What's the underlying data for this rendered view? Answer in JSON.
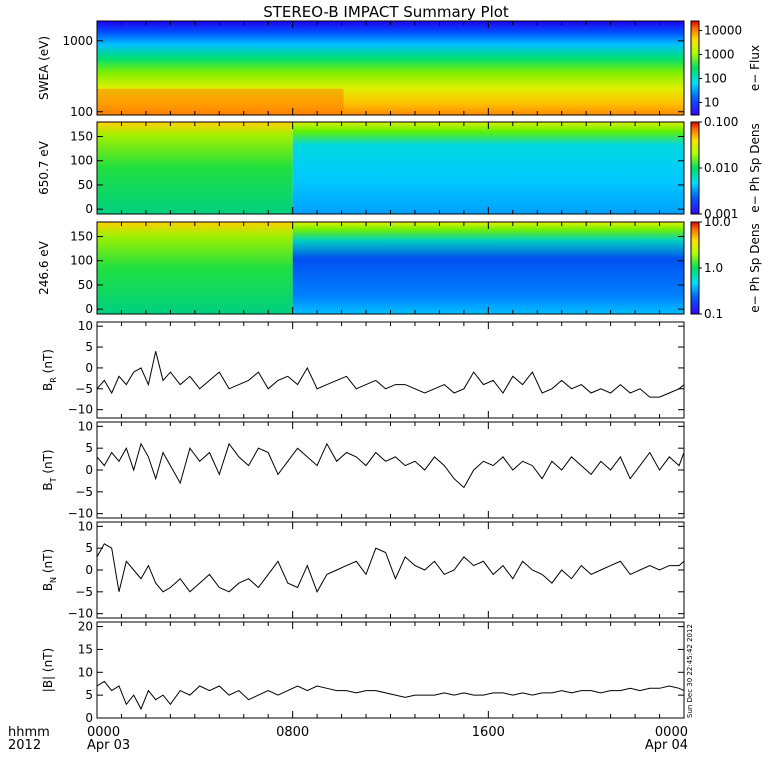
{
  "title": "STEREO-B IMPACT Summary Plot",
  "timestamp": "Sun Dec 30 22:45:42 2012",
  "time_axis": {
    "corner_label_top": "hhmm",
    "corner_label_bottom": "2012",
    "ticks": [
      {
        "hour": 0,
        "top": "0000",
        "bottom": "Apr 03"
      },
      {
        "hour": 8,
        "top": "0800",
        "bottom": ""
      },
      {
        "hour": 16,
        "top": "1600",
        "bottom": ""
      },
      {
        "hour": 24,
        "top": "0000",
        "bottom": "Apr 04"
      }
    ],
    "minor_tick_hours": 1
  },
  "chart_data": [
    {
      "id": "swea",
      "type": "heatmap",
      "ylabel": "SWEA (eV)",
      "y_scale": "log",
      "ylim": [
        90,
        1900
      ],
      "y_ticks": [
        {
          "value": 100,
          "label": "100"
        },
        {
          "value": 1000,
          "label": "1000"
        }
      ],
      "colorbar": {
        "label": "e− Flux",
        "scale": "log",
        "range": [
          3,
          25000
        ],
        "ticks": [
          {
            "value": 10000,
            "label": "10000"
          },
          {
            "value": 1000,
            "label": "1000"
          },
          {
            "value": 100,
            "label": "100"
          },
          {
            "value": 10,
            "label": "10"
          }
        ]
      }
    },
    {
      "id": "pad650",
      "type": "heatmap",
      "ylabel": "650.7 eV",
      "y_scale": "linear",
      "ylim": [
        -10,
        180
      ],
      "y_ticks": [
        {
          "value": 0,
          "label": "0"
        },
        {
          "value": 50,
          "label": "50"
        },
        {
          "value": 100,
          "label": "100"
        },
        {
          "value": 150,
          "label": "150"
        }
      ],
      "colorbar": {
        "label": "e− Ph Sp Dens",
        "scale": "log",
        "range": [
          0.001,
          0.1
        ],
        "ticks": [
          {
            "value": 0.1,
            "label": "0.100"
          },
          {
            "value": 0.01,
            "label": "0.010"
          },
          {
            "value": 0.001,
            "label": "0.001"
          }
        ]
      }
    },
    {
      "id": "pad246",
      "type": "heatmap",
      "ylabel": "246.6 eV",
      "y_scale": "linear",
      "ylim": [
        -10,
        180
      ],
      "y_ticks": [
        {
          "value": 0,
          "label": "0"
        },
        {
          "value": 50,
          "label": "50"
        },
        {
          "value": 100,
          "label": "100"
        },
        {
          "value": 150,
          "label": "150"
        }
      ],
      "colorbar": {
        "label": "e− Ph Sp Dens",
        "scale": "log",
        "range": [
          0.1,
          10
        ],
        "ticks": [
          {
            "value": 10,
            "label": "10.0"
          },
          {
            "value": 1,
            "label": "1.0"
          },
          {
            "value": 0.1,
            "label": "0.1"
          }
        ]
      }
    },
    {
      "id": "br",
      "type": "line",
      "ylabel_main": "B",
      "ylabel_sub": "R",
      "ylabel_unit": " (nT)",
      "ylim": [
        -12,
        11
      ],
      "y_ticks": [
        {
          "value": -10,
          "label": "−10"
        },
        {
          "value": -5,
          "label": "−5"
        },
        {
          "value": 0,
          "label": "0"
        },
        {
          "value": 5,
          "label": "5"
        },
        {
          "value": 10,
          "label": "10"
        }
      ],
      "series": [
        {
          "x": [
            0,
            0.3,
            0.6,
            0.9,
            1.2,
            1.5,
            1.8,
            2.1,
            2.4,
            2.7,
            3.0,
            3.4,
            3.8,
            4.2,
            4.6,
            5.0,
            5.4,
            5.8,
            6.2,
            6.6,
            7.0,
            7.4,
            7.8,
            8.2,
            8.6,
            9.0,
            9.4,
            9.8,
            10.2,
            10.6,
            11.0,
            11.4,
            11.8,
            12.2,
            12.6,
            13.0,
            13.4,
            13.8,
            14.2,
            14.6,
            15.0,
            15.4,
            15.8,
            16.2,
            16.6,
            17.0,
            17.4,
            17.8,
            18.2,
            18.6,
            19.0,
            19.4,
            19.8,
            20.2,
            20.6,
            21.0,
            21.4,
            21.8,
            22.2,
            22.6,
            23.0,
            23.4,
            23.8,
            24.0
          ],
          "y": [
            -5,
            -3,
            -6,
            -2,
            -4,
            -1,
            0,
            -4,
            4,
            -3,
            -1,
            -4,
            -2,
            -5,
            -3,
            -1,
            -5,
            -4,
            -3,
            -1,
            -5,
            -3,
            -2,
            -4,
            0,
            -5,
            -4,
            -3,
            -2,
            -5,
            -4,
            -3,
            -5,
            -4,
            -4,
            -5,
            -6,
            -5,
            -4,
            -6,
            -5,
            -1,
            -4,
            -3,
            -6,
            -2,
            -4,
            -1,
            -6,
            -5,
            -3,
            -5,
            -4,
            -6,
            -5,
            -6,
            -4,
            -6,
            -5,
            -7,
            -7,
            -6,
            -5,
            -4
          ]
        }
      ]
    },
    {
      "id": "bt",
      "type": "line",
      "ylabel_main": "B",
      "ylabel_sub": "T",
      "ylabel_unit": " (nT)",
      "ylim": [
        -11,
        11
      ],
      "y_ticks": [
        {
          "value": -10,
          "label": "−10"
        },
        {
          "value": -5,
          "label": "−5"
        },
        {
          "value": 0,
          "label": "0"
        },
        {
          "value": 5,
          "label": "5"
        },
        {
          "value": 10,
          "label": "10"
        }
      ],
      "series": [
        {
          "x": [
            0,
            0.3,
            0.6,
            0.9,
            1.2,
            1.5,
            1.8,
            2.1,
            2.4,
            2.7,
            3.0,
            3.4,
            3.8,
            4.2,
            4.6,
            5.0,
            5.4,
            5.8,
            6.2,
            6.6,
            7.0,
            7.4,
            7.8,
            8.2,
            8.6,
            9.0,
            9.4,
            9.8,
            10.2,
            10.6,
            11.0,
            11.4,
            11.8,
            12.2,
            12.6,
            13.0,
            13.4,
            13.8,
            14.2,
            14.6,
            15.0,
            15.4,
            15.8,
            16.2,
            16.6,
            17.0,
            17.4,
            17.8,
            18.2,
            18.6,
            19.0,
            19.4,
            19.8,
            20.2,
            20.6,
            21.0,
            21.4,
            21.8,
            22.2,
            22.6,
            23.0,
            23.4,
            23.8,
            24.0
          ],
          "y": [
            3,
            1,
            4,
            2,
            5,
            0,
            6,
            3,
            -2,
            4,
            1,
            -3,
            5,
            2,
            4,
            -1,
            6,
            3,
            1,
            5,
            4,
            -1,
            2,
            5,
            3,
            1,
            6,
            2,
            4,
            3,
            1,
            4,
            2,
            3,
            1,
            2,
            0,
            3,
            1,
            -2,
            -4,
            0,
            2,
            1,
            3,
            0,
            2,
            1,
            -2,
            2,
            0,
            3,
            1,
            -1,
            2,
            0,
            3,
            -2,
            1,
            4,
            0,
            3,
            1,
            4
          ]
        }
      ]
    },
    {
      "id": "bn",
      "type": "line",
      "ylabel_main": "B",
      "ylabel_sub": "N",
      "ylabel_unit": " (nT)",
      "ylim": [
        -11,
        11
      ],
      "y_ticks": [
        {
          "value": -10,
          "label": "−10"
        },
        {
          "value": -5,
          "label": "−5"
        },
        {
          "value": 0,
          "label": "0"
        },
        {
          "value": 5,
          "label": "5"
        },
        {
          "value": 10,
          "label": "10"
        }
      ],
      "series": [
        {
          "x": [
            0,
            0.3,
            0.6,
            0.9,
            1.2,
            1.5,
            1.8,
            2.1,
            2.4,
            2.7,
            3.0,
            3.4,
            3.8,
            4.2,
            4.6,
            5.0,
            5.4,
            5.8,
            6.2,
            6.6,
            7.0,
            7.4,
            7.8,
            8.2,
            8.6,
            9.0,
            9.4,
            9.8,
            10.2,
            10.6,
            11.0,
            11.4,
            11.8,
            12.2,
            12.6,
            13.0,
            13.4,
            13.8,
            14.2,
            14.6,
            15.0,
            15.4,
            15.8,
            16.2,
            16.6,
            17.0,
            17.4,
            17.8,
            18.2,
            18.6,
            19.0,
            19.4,
            19.8,
            20.2,
            20.6,
            21.0,
            21.4,
            21.8,
            22.2,
            22.6,
            23.0,
            23.4,
            23.8,
            24.0
          ],
          "y": [
            3,
            6,
            5,
            -5,
            2,
            0,
            -2,
            1,
            -3,
            -5,
            -4,
            -2,
            -5,
            -3,
            -1,
            -4,
            -5,
            -3,
            -2,
            -4,
            -1,
            2,
            -3,
            -4,
            1,
            -5,
            -1,
            0,
            1,
            2,
            -1,
            5,
            4,
            -2,
            3,
            1,
            0,
            2,
            -1,
            0,
            3,
            1,
            2,
            -1,
            1,
            -2,
            2,
            0,
            -1,
            -3,
            0,
            -2,
            1,
            -1,
            0,
            1,
            2,
            -1,
            0,
            1,
            0,
            1,
            1,
            2
          ]
        }
      ]
    },
    {
      "id": "bmag",
      "type": "line",
      "ylabel_main": "|B| (nT)",
      "ylabel_sub": "",
      "ylabel_unit": "",
      "ylim": [
        0,
        21
      ],
      "y_ticks": [
        {
          "value": 0,
          "label": "0"
        },
        {
          "value": 5,
          "label": "5"
        },
        {
          "value": 10,
          "label": "10"
        },
        {
          "value": 15,
          "label": "15"
        },
        {
          "value": 20,
          "label": "20"
        }
      ],
      "series": [
        {
          "x": [
            0,
            0.3,
            0.6,
            0.9,
            1.2,
            1.5,
            1.8,
            2.1,
            2.4,
            2.7,
            3.0,
            3.4,
            3.8,
            4.2,
            4.6,
            5.0,
            5.4,
            5.8,
            6.2,
            6.6,
            7.0,
            7.4,
            7.8,
            8.2,
            8.6,
            9.0,
            9.4,
            9.8,
            10.2,
            10.6,
            11.0,
            11.4,
            11.8,
            12.2,
            12.6,
            13.0,
            13.4,
            13.8,
            14.2,
            14.6,
            15.0,
            15.4,
            15.8,
            16.2,
            16.6,
            17.0,
            17.4,
            17.8,
            18.2,
            18.6,
            19.0,
            19.4,
            19.8,
            20.2,
            20.6,
            21.0,
            21.4,
            21.8,
            22.2,
            22.6,
            23.0,
            23.4,
            23.8,
            24.0
          ],
          "y": [
            7,
            8,
            6,
            7,
            3,
            5,
            2,
            6,
            4,
            5,
            3,
            6,
            5,
            7,
            6,
            7,
            5,
            6,
            4,
            5,
            6,
            5,
            6,
            7,
            6,
            7,
            6.5,
            6,
            6,
            5.5,
            6,
            6,
            5.5,
            5,
            4.5,
            5,
            5,
            5,
            5.5,
            5,
            5.5,
            5,
            5,
            5.5,
            5.5,
            5,
            5.5,
            5,
            5.5,
            5.5,
            6,
            5.5,
            6,
            6,
            5.5,
            6,
            6,
            6.5,
            6,
            6.5,
            6.5,
            7,
            6.5,
            6
          ]
        }
      ]
    }
  ]
}
